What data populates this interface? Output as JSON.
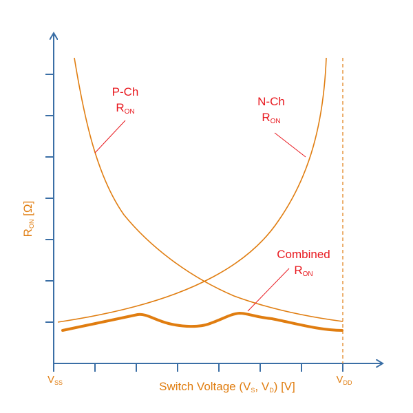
{
  "colors": {
    "axis": "#3a6ea5",
    "curve": "#e07d10",
    "label_red": "#e8191f",
    "label_orange": "#e07d10"
  },
  "axes": {
    "y_label_main": "R",
    "y_label_sub": "ON",
    "y_label_unit": " [Ω]",
    "x_label_pre": "Switch Voltage (V",
    "x_label_s_sub": "S",
    "x_label_mid": ", V",
    "x_label_d_sub": "D",
    "x_label_post": ") [V]",
    "vss_main": "V",
    "vss_sub": "SS",
    "vdd_main": "V",
    "vdd_sub": "DD"
  },
  "labels": {
    "pch_line1": "P-Ch",
    "pch_line2_main": "R",
    "pch_line2_sub": "ON",
    "nch_line1": "N-Ch",
    "nch_line2_main": "R",
    "nch_line2_sub": "ON",
    "comb_line1": "Combined",
    "comb_line2_main": "R",
    "comb_line2_sub": "ON"
  },
  "chart_data": {
    "type": "line",
    "xlabel": "Switch Voltage (VS, VD) [V]",
    "ylabel": "RON [Ω]",
    "x_ticks_labeled": [
      "VSS",
      "VDD"
    ],
    "series": [
      {
        "name": "P-Ch RON",
        "x": [
          0.05,
          0.1,
          0.15,
          0.2,
          0.25,
          0.3,
          0.4,
          0.5,
          0.6,
          0.7,
          0.8,
          0.9,
          1.0
        ],
        "values": [
          6.9,
          5.3,
          4.4,
          3.7,
          3.2,
          2.8,
          2.2,
          1.7,
          1.4,
          1.2,
          1.05,
          0.95,
          0.9
        ]
      },
      {
        "name": "N-Ch RON",
        "x": [
          0.0,
          0.1,
          0.2,
          0.3,
          0.4,
          0.5,
          0.6,
          0.7,
          0.75,
          0.8,
          0.85,
          0.9,
          0.95,
          0.99
        ],
        "values": [
          0.9,
          1.05,
          1.2,
          1.4,
          1.7,
          2.2,
          2.7,
          3.3,
          3.8,
          4.3,
          4.9,
          5.6,
          6.3,
          7.3
        ]
      },
      {
        "name": "Combined RON",
        "x": [
          0.03,
          0.2,
          0.3,
          0.4,
          0.5,
          0.6,
          0.65,
          0.72,
          0.8,
          0.9,
          0.99
        ],
        "values": [
          0.6,
          0.85,
          0.95,
          0.6,
          0.55,
          0.75,
          0.95,
          0.8,
          0.7,
          0.6,
          0.55
        ]
      }
    ]
  }
}
